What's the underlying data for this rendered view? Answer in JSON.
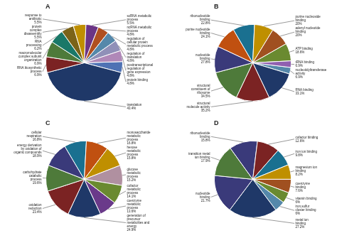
{
  "chart_data": [
    {
      "type": "pie",
      "title": "A",
      "categories": [
        "protein binding\n4.8%",
        "translation\n43.4%",
        "RNA biosynthetic\nprocess\n6.9%",
        "macromolecular\ncomplex subunit\norganization\n6.9%",
        "RNA\nprocessing\n6.2%",
        "protein\ncomplex\ndisassembly\n5.5%",
        "response to\nantibiotic\n5.5%",
        "scRNA metabolic\nprocess\n5.5%",
        "ncRNA metabolic\nprocess\n4.8%",
        "regulation of\ncellular protein\nmetabolic process\n4.8%",
        "regulation of\ntranslation\n4.8%",
        "posttranscriptional\nregulation of\ngene expression\n4.8%"
      ],
      "values": [
        4.8,
        43.4,
        6.9,
        6.9,
        6.2,
        5.5,
        5.5,
        5.5,
        4.8,
        4.8,
        4.8,
        4.8
      ],
      "colors": [
        "#4f72b4",
        "#1f3868",
        "#7b2323",
        "#4e7a3a",
        "#1a7868",
        "#7b6318",
        "#bf8f00",
        "#6b3585",
        "#b05020",
        "#5588aa",
        "#9090b8",
        "#b088b8"
      ]
    },
    {
      "type": "pie",
      "title": "B",
      "categories": [
        "nucleotidyltransferase\nactivity\n6.9%",
        "RNA binding\n33.1%",
        "structural\nmolecule activity\n35.2%",
        "structural\nconstituent of\nribosome\n34.5%",
        "nucleotide\nbinding\n27.8%",
        "purine nucleotide\nbinding\n24.1%",
        "ribonucleotide\nbinding\n22.8%",
        "purine nucleoside\nbinding\n20%",
        "adenyl nucleotide\nbinding\n20%",
        "ATP binding\n18.6%",
        "tRNA binding\n6.9%"
      ],
      "values": [
        6.9,
        33.1,
        35.2,
        34.5,
        27.8,
        24.1,
        22.8,
        20.0,
        20.0,
        18.6,
        6.9
      ],
      "colors": [
        "#5588aa",
        "#1f3868",
        "#7b2323",
        "#4e7a3a",
        "#3a3a7a",
        "#c05010",
        "#1a7090",
        "#bf8f00",
        "#a05020",
        "#6a8a30",
        "#9060b0"
      ]
    },
    {
      "type": "pie",
      "title": "C",
      "categories": [
        "coenzyme\nmetabolic\nprocess\n13.6%",
        "generation of\nprecursor\nmetabolites and\nenergy\n24.9%",
        "oxidation\nreduction\n23.4%",
        "carbohydrate\ncatabolic\nprocess\n19.6%",
        "energy derivation\nby oxidation of\norganic compounds\n18.9%",
        "cellular\nrespiration\n16.8%",
        "monosaccharide\nmetabolic\nprocess\n16.8%",
        "hexose\nmetabolic\nprocess\n15.8%",
        "glucose\nmetabolic\nprocess\n15.2%",
        "cofactor\nmetabolic\nprocess\n14.1%"
      ],
      "values": [
        13.6,
        24.9,
        23.4,
        19.6,
        18.9,
        16.8,
        16.8,
        15.8,
        15.2,
        14.1
      ],
      "colors": [
        "#6a3a8a",
        "#1f3868",
        "#7b2323",
        "#4e7a3a",
        "#3a3a7a",
        "#1a7090",
        "#c05010",
        "#bf8f00",
        "#b090a0",
        "#6a8a30"
      ]
    },
    {
      "type": "pie",
      "title": "D",
      "categories": [
        "iron,sulfur\ncluster binding\n6%",
        "metal ion\nbinding\n27.2%",
        "nucleotide\nbinding\n21.7%",
        "transition metal\nion binding\n17.9%",
        "ribonucleotide\nbinding\n15.8%",
        "cofactor binding\n12.6%",
        "iron ion binding\n9.8%",
        "magnesium ion\nbinding\n8.2%",
        "coenzyme\nbinding\n7.6%",
        "vitamin binding\n6%"
      ],
      "values": [
        6.0,
        27.2,
        21.7,
        17.9,
        15.8,
        12.6,
        9.8,
        8.2,
        7.6,
        6.0
      ],
      "colors": [
        "#5588aa",
        "#1f3868",
        "#3a3a7a",
        "#4e7a3a",
        "#3a3a7a",
        "#7b2323",
        "#1a7090",
        "#bf8f00",
        "#a05020",
        "#6a8a30"
      ]
    }
  ]
}
